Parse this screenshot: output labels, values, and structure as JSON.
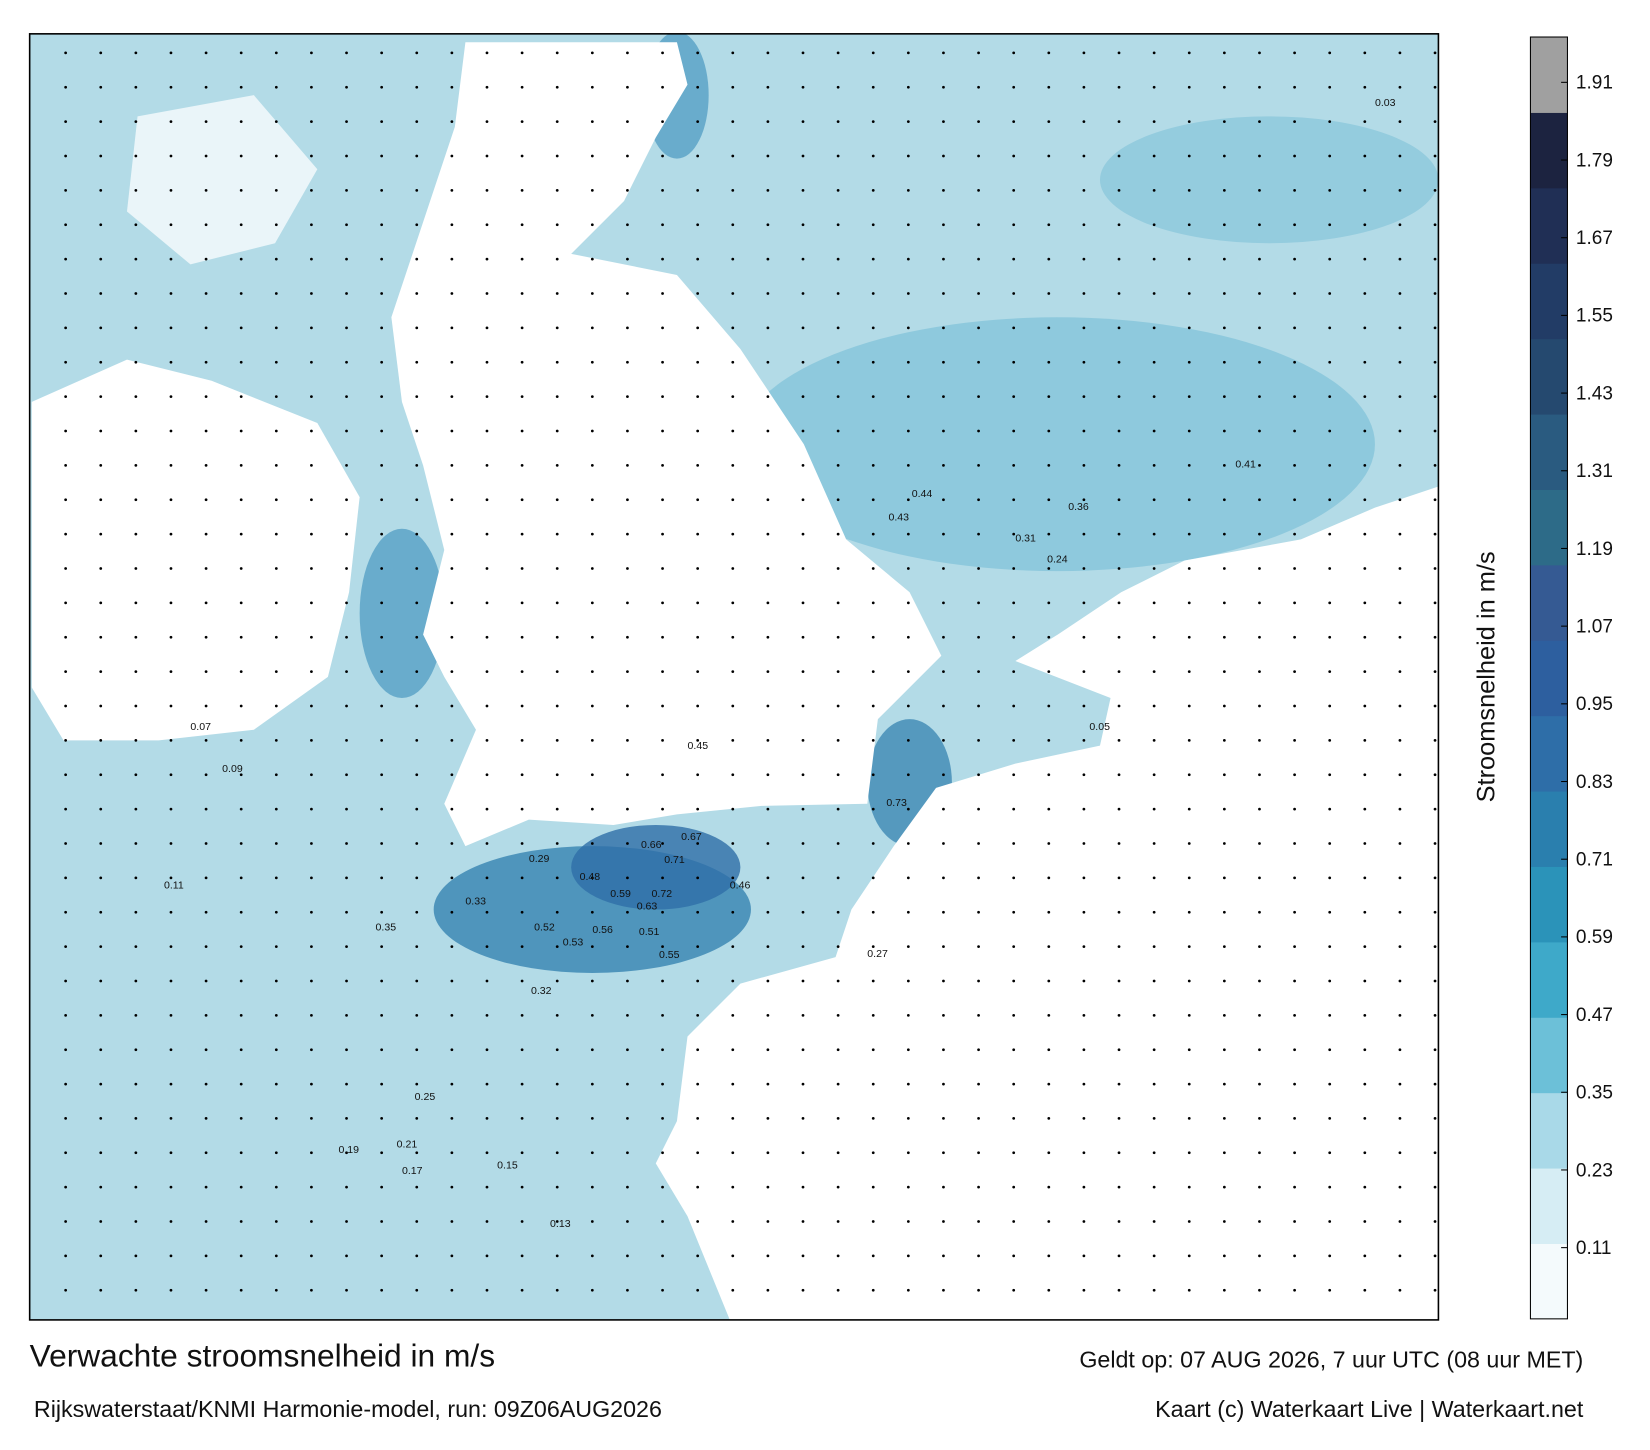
{
  "title": "Verwachte stroomsnelheid in m/s",
  "valid": "Geldt op: 07 AUG 2026, 7 uur UTC (08 uur MET)",
  "source": "Rijkswaterstaat/KNMI Harmonie-model, run: 09Z06AUG2026",
  "credit": "Kaart (c) Waterkaart Live | Waterkaart.net",
  "colorbar": {
    "label": "Stroomsnelheid in m/s",
    "lim": [
      0,
      1.98
    ],
    "ticks": [
      0.11,
      0.23,
      0.35,
      0.47,
      0.59,
      0.71,
      0.83,
      0.95,
      1.07,
      1.19,
      1.31,
      1.43,
      1.55,
      1.67,
      1.79,
      1.91
    ],
    "colors": [
      "#f4fafc",
      "#d6edf4",
      "#a9d9e8",
      "#6cc0d8",
      "#3ea9c9",
      "#2b93b9",
      "#2a7fae",
      "#2e6ea8",
      "#2d5f9f",
      "#355a93",
      "#2d6b88",
      "#2a5b80",
      "#25496f",
      "#223c66",
      "#202f55",
      "#1c2340",
      "#a0a0a0"
    ]
  },
  "speed_labels": [
    "0.73",
    "0.72",
    "0.71",
    "0.67",
    "0.66",
    "0.63",
    "0.59",
    "0.56",
    "0.55",
    "0.53",
    "0.52",
    "0.51",
    "0.48",
    "0.46",
    "0.45",
    "0.44",
    "0.43",
    "0.41",
    "0.36",
    "0.35",
    "0.33",
    "0.32",
    "0.31",
    "0.29",
    "0.27",
    "0.25",
    "0.24",
    "0.21",
    "0.19",
    "0.17",
    "0.15",
    "0.13",
    "0.11",
    "0.09",
    "0.07",
    "0.05",
    "0.03"
  ]
}
